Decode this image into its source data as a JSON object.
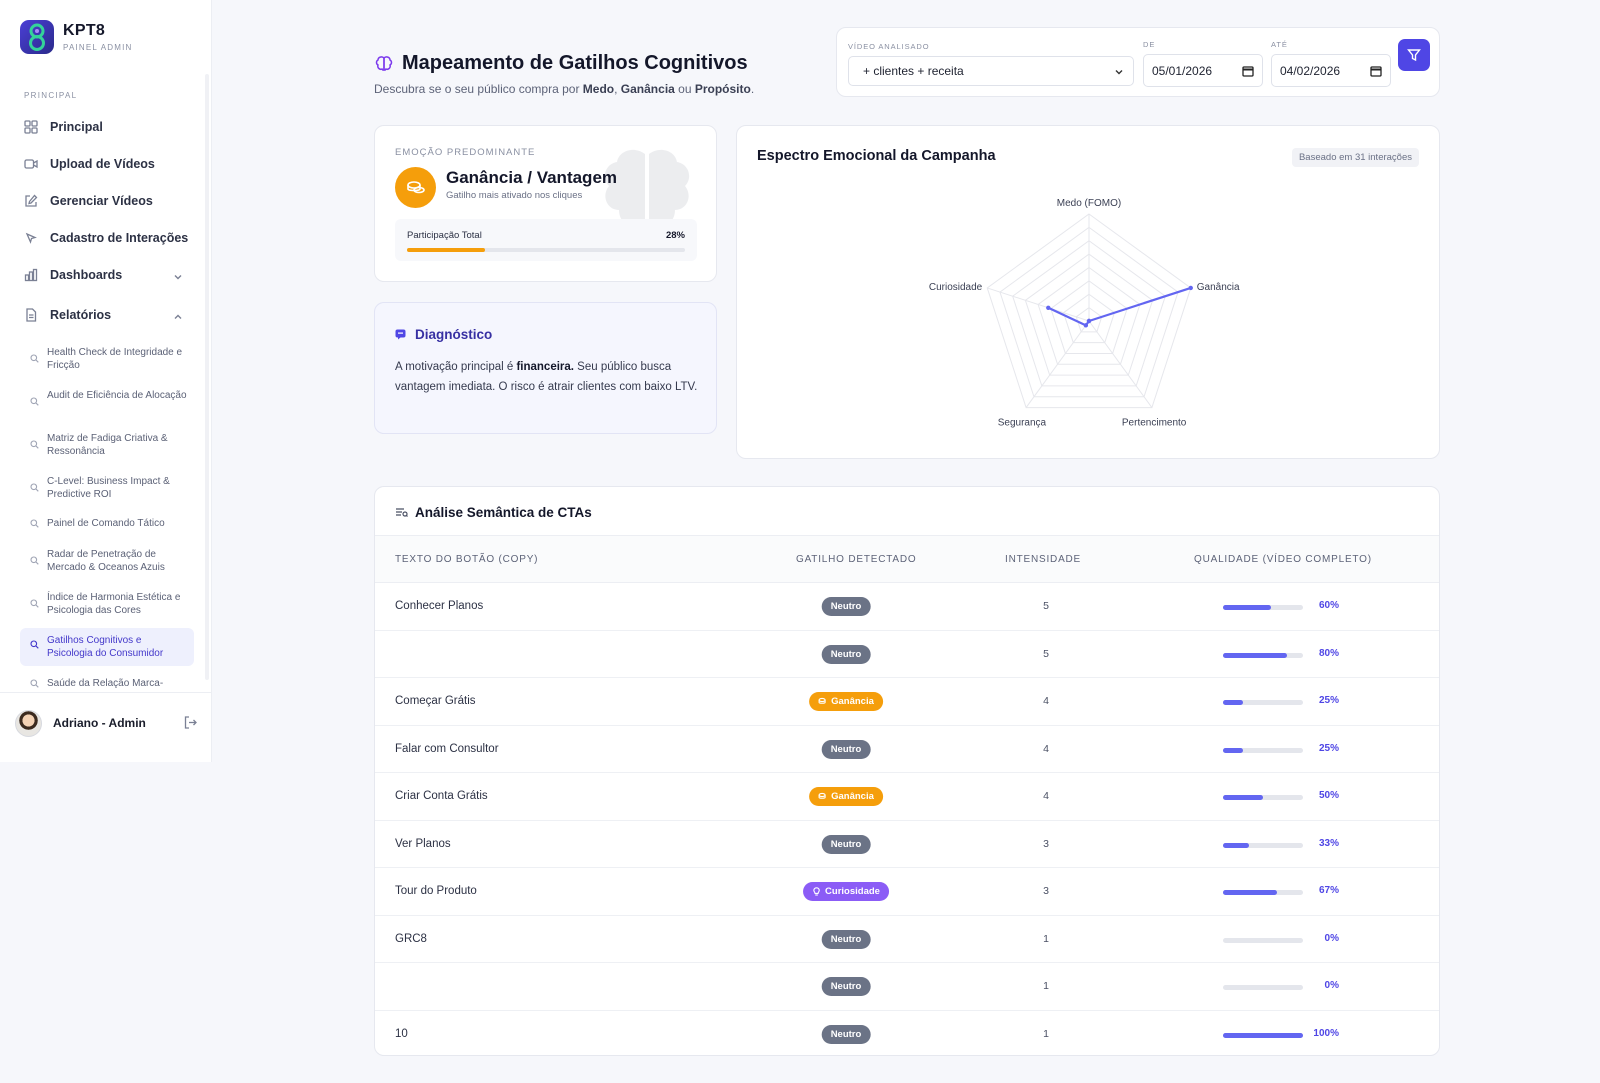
{
  "brand": {
    "name": "KPT8",
    "sub": "PAINEL ADMIN"
  },
  "sidebar": {
    "section": "PRINCIPAL",
    "items": [
      {
        "label": "Principal",
        "icon": "grid-icon"
      },
      {
        "label": "Upload de Vídeos",
        "icon": "video-icon"
      },
      {
        "label": "Gerenciar Vídeos",
        "icon": "edit-icon"
      },
      {
        "label": "Cadastro de Interações",
        "icon": "cursor-icon"
      },
      {
        "label": "Dashboards",
        "icon": "bar-chart-icon"
      },
      {
        "label": "Relatórios",
        "icon": "document-icon"
      }
    ],
    "reports": [
      "Health Check de Integridade e Fricção",
      "Audit de Eficiência de Alocação",
      "Matriz de Fadiga Criativa & Ressonância",
      "C-Level: Business Impact & Predictive ROI",
      "Painel de Comando Tático",
      "Radar de Penetração de Mercado & Oceanos Azuis",
      "Índice de Harmonia Estética e Psicologia das Cores",
      "Gatilhos Cognitivos e Psicologia do Consumidor",
      "Saúde da Relação Marca-"
    ]
  },
  "user": {
    "name": "Adriano - Admin"
  },
  "header": {
    "title": "Mapeamento de Gatilhos Cognitivos",
    "sub_prefix": "Descubra se o seu público compra por ",
    "sub_b1": "Medo",
    "sub_sep1": ", ",
    "sub_b2": "Ganância",
    "sub_sep2": " ou ",
    "sub_b3": "Propósito",
    "sub_end": "."
  },
  "filters": {
    "video_label": "VÍDEO ANALISADO",
    "video_value": "+ clientes + receita",
    "from_label": "DE",
    "from_value": "05/01/2026",
    "to_label": "ATÉ",
    "to_value": "04/02/2026"
  },
  "emotion": {
    "label": "EMOÇÃO PREDOMINANTE",
    "title": "Ganância / Vantagem",
    "desc": "Gatilho mais ativado nos cliques",
    "part_label": "Participação Total",
    "part_value": "28%",
    "part_fraction": 0.28,
    "color": "#f59e0b"
  },
  "diagnosis": {
    "title": "Diagnóstico",
    "t1": "A motivação principal é ",
    "t2": "financeira.",
    "t3": " Seu público busca vantagem imediata. O risco é atrair clientes com baixo LTV."
  },
  "radar": {
    "title": "Espectro Emocional da Campanha",
    "badge": "Baseado em 31 interações",
    "axes": [
      "Medo (FOMO)",
      "Ganância",
      "Pertencimento",
      "Segurança",
      "Curiosidade"
    ],
    "values": [
      0,
      1.0,
      0,
      0.05,
      0.4
    ],
    "color": "#6366f1"
  },
  "table": {
    "title": "Análise Semântica de CTAs",
    "headers": [
      "TEXTO DO BOTÃO (COPY)",
      "GATILHO DETECTADO",
      "INTENSIDADE",
      "QUALIDADE (VÍDEO COMPLETO)"
    ],
    "rows": [
      {
        "copy": "Conhecer Planos",
        "trigger": "Neutro",
        "type": "neutro",
        "intensity": "5",
        "quality": "60%",
        "q": 0.6
      },
      {
        "copy": "",
        "trigger": "Neutro",
        "type": "neutro",
        "intensity": "5",
        "quality": "80%",
        "q": 0.8
      },
      {
        "copy": "Começar Grátis",
        "trigger": "Ganância",
        "type": "ganancia",
        "intensity": "4",
        "quality": "25%",
        "q": 0.25
      },
      {
        "copy": "Falar com Consultor",
        "trigger": "Neutro",
        "type": "neutro",
        "intensity": "4",
        "quality": "25%",
        "q": 0.25
      },
      {
        "copy": "Criar Conta Grátis",
        "trigger": "Ganância",
        "type": "ganancia",
        "intensity": "4",
        "quality": "50%",
        "q": 0.5
      },
      {
        "copy": "Ver Planos",
        "trigger": "Neutro",
        "type": "neutro",
        "intensity": "3",
        "quality": "33%",
        "q": 0.33
      },
      {
        "copy": "Tour do Produto",
        "trigger": "Curiosidade",
        "type": "curiosidade",
        "intensity": "3",
        "quality": "67%",
        "q": 0.67
      },
      {
        "copy": "GRC8",
        "trigger": "Neutro",
        "type": "neutro",
        "intensity": "1",
        "quality": "0%",
        "q": 0
      },
      {
        "copy": "",
        "trigger": "Neutro",
        "type": "neutro",
        "intensity": "1",
        "quality": "0%",
        "q": 0
      },
      {
        "copy": "10",
        "trigger": "Neutro",
        "type": "neutro",
        "intensity": "1",
        "quality": "100%",
        "q": 1.0
      }
    ]
  }
}
